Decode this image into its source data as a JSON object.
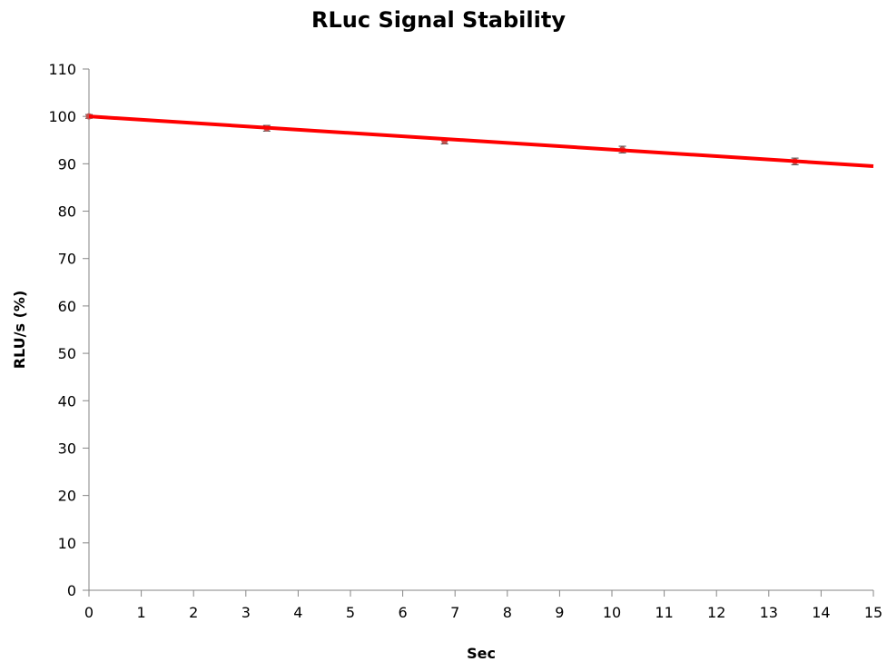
{
  "chart_data": {
    "type": "line",
    "title": "RLuc Signal Stability",
    "xlabel": "Sec",
    "ylabel": "RLU/s (%)",
    "xlim": [
      0,
      15
    ],
    "ylim": [
      0,
      110
    ],
    "xticks": [
      "0",
      "1",
      "2",
      "3",
      "4",
      "5",
      "6",
      "7",
      "8",
      "9",
      "10",
      "11",
      "12",
      "13",
      "14",
      "15"
    ],
    "yticks": [
      "0",
      "10",
      "20",
      "30",
      "40",
      "50",
      "60",
      "70",
      "80",
      "90",
      "100",
      "110"
    ],
    "grid": false,
    "legend": "none",
    "series": [
      {
        "color": "#ff0000",
        "marker_color": "#c0504d",
        "x": [
          0,
          3.4,
          6.8,
          10.2,
          13.5
        ],
        "y": [
          100,
          97.5,
          94.8,
          93.0,
          90.5
        ],
        "error": [
          0.4,
          0.6,
          0.6,
          0.7,
          0.7
        ]
      }
    ],
    "trendline": {
      "x": [
        0,
        15
      ],
      "y": [
        100,
        89.5
      ],
      "color": "#ff0000"
    }
  }
}
